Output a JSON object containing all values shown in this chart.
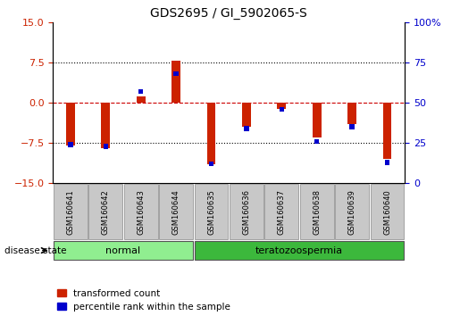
{
  "title": "GDS2695 / GI_5902065-S",
  "samples": [
    "GSM160641",
    "GSM160642",
    "GSM160643",
    "GSM160644",
    "GSM160635",
    "GSM160636",
    "GSM160637",
    "GSM160638",
    "GSM160639",
    "GSM160640"
  ],
  "groups": [
    "normal",
    "normal",
    "normal",
    "normal",
    "teratozoospermia",
    "teratozoospermia",
    "teratozoospermia",
    "teratozoospermia",
    "teratozoospermia",
    "teratozoospermia"
  ],
  "red_values": [
    -8.0,
    -8.5,
    1.2,
    7.8,
    -11.5,
    -4.5,
    -1.2,
    -6.5,
    -4.0,
    -10.5
  ],
  "blue_values_pct": [
    24,
    23,
    57,
    68,
    12,
    34,
    46,
    26,
    35,
    13
  ],
  "ylim_left": [
    -15,
    15
  ],
  "ylim_right": [
    0,
    100
  ],
  "yticks_left": [
    -15,
    -7.5,
    0,
    7.5,
    15
  ],
  "yticks_right": [
    0,
    25,
    50,
    75,
    100
  ],
  "bar_color_red": "#CC2200",
  "bar_color_blue": "#0000CC",
  "hline_color_red": "#CC0000",
  "hline_color_black": "#000000",
  "tick_color_left": "#CC2200",
  "tick_color_right": "#0000CC",
  "label_normal": "normal",
  "label_terato": "teratozoospermia",
  "legend_red": "transformed count",
  "legend_blue": "percentile rank within the sample",
  "disease_state_label": "disease state",
  "normal_color": "#90EE90",
  "terato_color": "#3CB83C",
  "gray_box_color": "#C8C8C8"
}
